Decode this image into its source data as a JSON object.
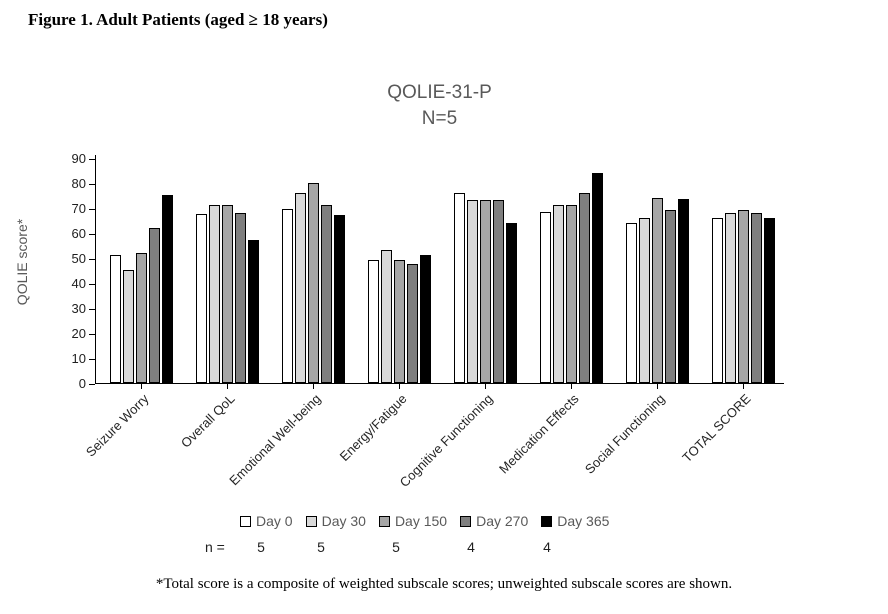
{
  "figure_title": "Figure 1. Adult Patients (aged ≥ 18 years)",
  "footnote": "*Total score is a composite of weighted subscale scores; unweighted subscale scores are shown.",
  "chart_data": {
    "type": "bar",
    "title": "QOLIE-31-P",
    "subtitle": "N=5",
    "xlabel": "",
    "ylabel": "QOLIE score*",
    "ylim": [
      0,
      90
    ],
    "ytick_step": 10,
    "grid": false,
    "legend_position": "bottom",
    "categories": [
      "Seizure Worry",
      "Overall QoL",
      "Emotional Well-being",
      "Energy/Fatigue",
      "Cognitive Functioning",
      "Medication Effects",
      "Social Functioning",
      "TOTAL SCORE"
    ],
    "series": [
      {
        "name": "Day 0",
        "color": "#ffffff",
        "values": [
          51,
          67.5,
          69.5,
          49,
          76,
          68.5,
          64,
          66
        ]
      },
      {
        "name": "Day 30",
        "color": "#d9d9d9",
        "values": [
          45,
          71,
          76,
          53,
          73,
          71,
          66,
          68
        ]
      },
      {
        "name": "Day 150",
        "color": "#a6a6a6",
        "values": [
          52,
          71,
          80,
          49,
          73,
          71,
          74,
          69
        ]
      },
      {
        "name": "Day 270",
        "color": "#7f7f7f",
        "values": [
          62,
          68,
          71,
          47.5,
          73,
          76,
          69,
          68
        ]
      },
      {
        "name": "Day 365",
        "color": "#000000",
        "values": [
          75,
          57,
          67,
          51,
          64,
          84,
          73.5,
          66
        ]
      }
    ],
    "n_label": "n =",
    "n_values": [
      "5",
      "5",
      "5",
      "4",
      "4"
    ]
  }
}
